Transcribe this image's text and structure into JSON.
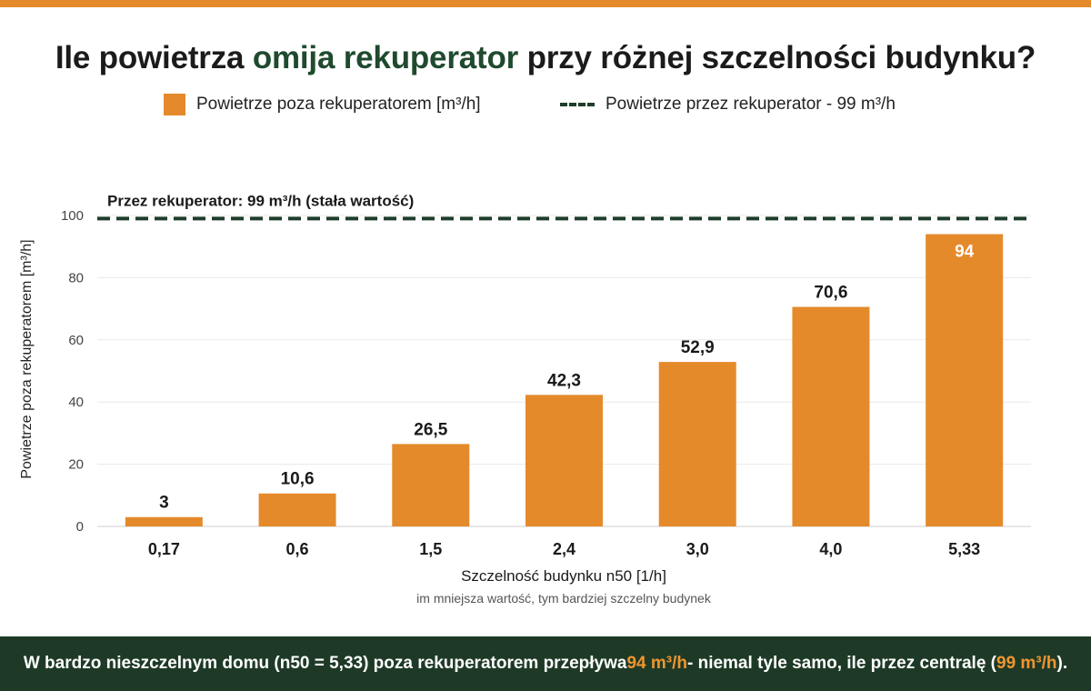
{
  "title": {
    "part1": "Ile powietrza ",
    "highlight": "omija rekuperator",
    "part2": " przy różnej szczelności budynku?"
  },
  "legend": {
    "bars": "Powietrze poza rekuperatorem [m³/h]",
    "line": "Powietrze przez rekuperator - 99 m³/h"
  },
  "chart_data": {
    "type": "bar",
    "categories": [
      "0,17",
      "0,6",
      "1,5",
      "2,4",
      "3,0",
      "4,0",
      "5,33"
    ],
    "values": [
      3,
      10.6,
      26.5,
      42.3,
      52.9,
      70.6,
      94
    ],
    "value_labels": [
      "3",
      "10,6",
      "26,5",
      "42,3",
      "52,9",
      "70,6",
      "94"
    ],
    "ylabel": "Powietrze poza rekuperatorem [m³/h]",
    "xlabel": "Szczelność budynku n50 [1/h]",
    "xsublabel": "im mniejsza wartość, tym bardziej szczelny budynek",
    "ylim": [
      0,
      100
    ],
    "yticks": [
      0,
      20,
      40,
      60,
      80,
      100
    ],
    "grid": true,
    "reference_line": {
      "value": 99,
      "label": "Przez rekuperator: 99 m³/h (stała wartość)"
    },
    "colors": {
      "bar": "#e58a2b",
      "line": "#1e3d2a"
    }
  },
  "footer": {
    "t1": "W bardzo nieszczelnym domu (n50 = 5,33) poza rekuperatorem przepływa ",
    "v1": "94 m³/h",
    "t2": " - niemal tyle samo, ile przez centralę (",
    "v2": "99 m³/h",
    "t3": ")."
  }
}
